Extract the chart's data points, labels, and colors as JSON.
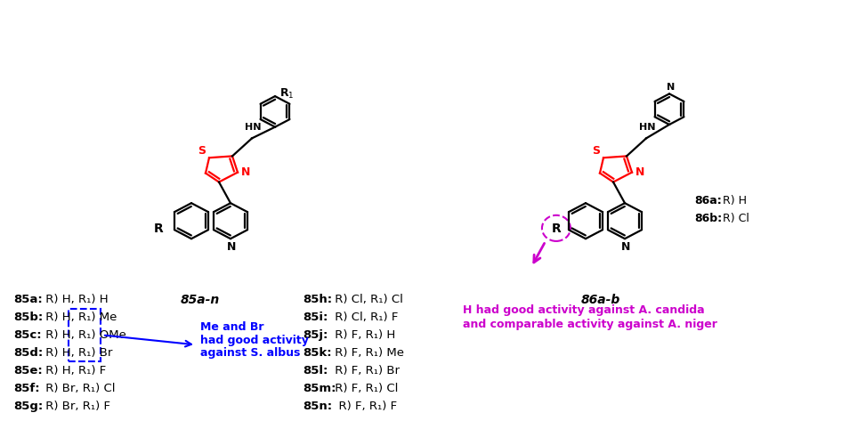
{
  "bg_color": "#ffffff",
  "label_85an": "85a-n",
  "label_86ab": "86a-b",
  "compounds_left": [
    {
      "bold": "85a:",
      "text": " R) H, R₁) H"
    },
    {
      "bold": "85b:",
      "text": " R) H, R₁) Me"
    },
    {
      "bold": "85c:",
      "text": " R) H, R₁) OMe"
    },
    {
      "bold": "85d:",
      "text": " R) H, R₁) Br"
    },
    {
      "bold": "85e:",
      "text": " R) H, R₁) F"
    },
    {
      "bold": "85f:",
      "text": " R) Br, R₁) Cl"
    },
    {
      "bold": "85g:",
      "text": " R) Br, R₁) F"
    }
  ],
  "compounds_right": [
    {
      "bold": "85h:",
      "text": " R) Cl, R₁) Cl"
    },
    {
      "bold": "85i:",
      "text": " R) Cl, R₁) F"
    },
    {
      "bold": "85j:",
      "text": " R) F, R₁) H"
    },
    {
      "bold": "85k:",
      "text": " R) F, R₁) Me"
    },
    {
      "bold": "85l:",
      "text": " R) F, R₁) Br"
    },
    {
      "bold": "85m:",
      "text": " R) F, R₁) Cl"
    },
    {
      "bold": "85n:",
      "text": "  R) F, R₁) F"
    }
  ],
  "annotation_blue": [
    "Me and Br",
    "had good activity",
    "against S. albus"
  ],
  "annotation_purple": [
    "H had good activity against A. candida",
    "and comparable activity against A. niger"
  ],
  "color_red": "#ff0000",
  "color_blue": "#0000ff",
  "color_purple": "#cc00cc",
  "color_black": "#000000"
}
